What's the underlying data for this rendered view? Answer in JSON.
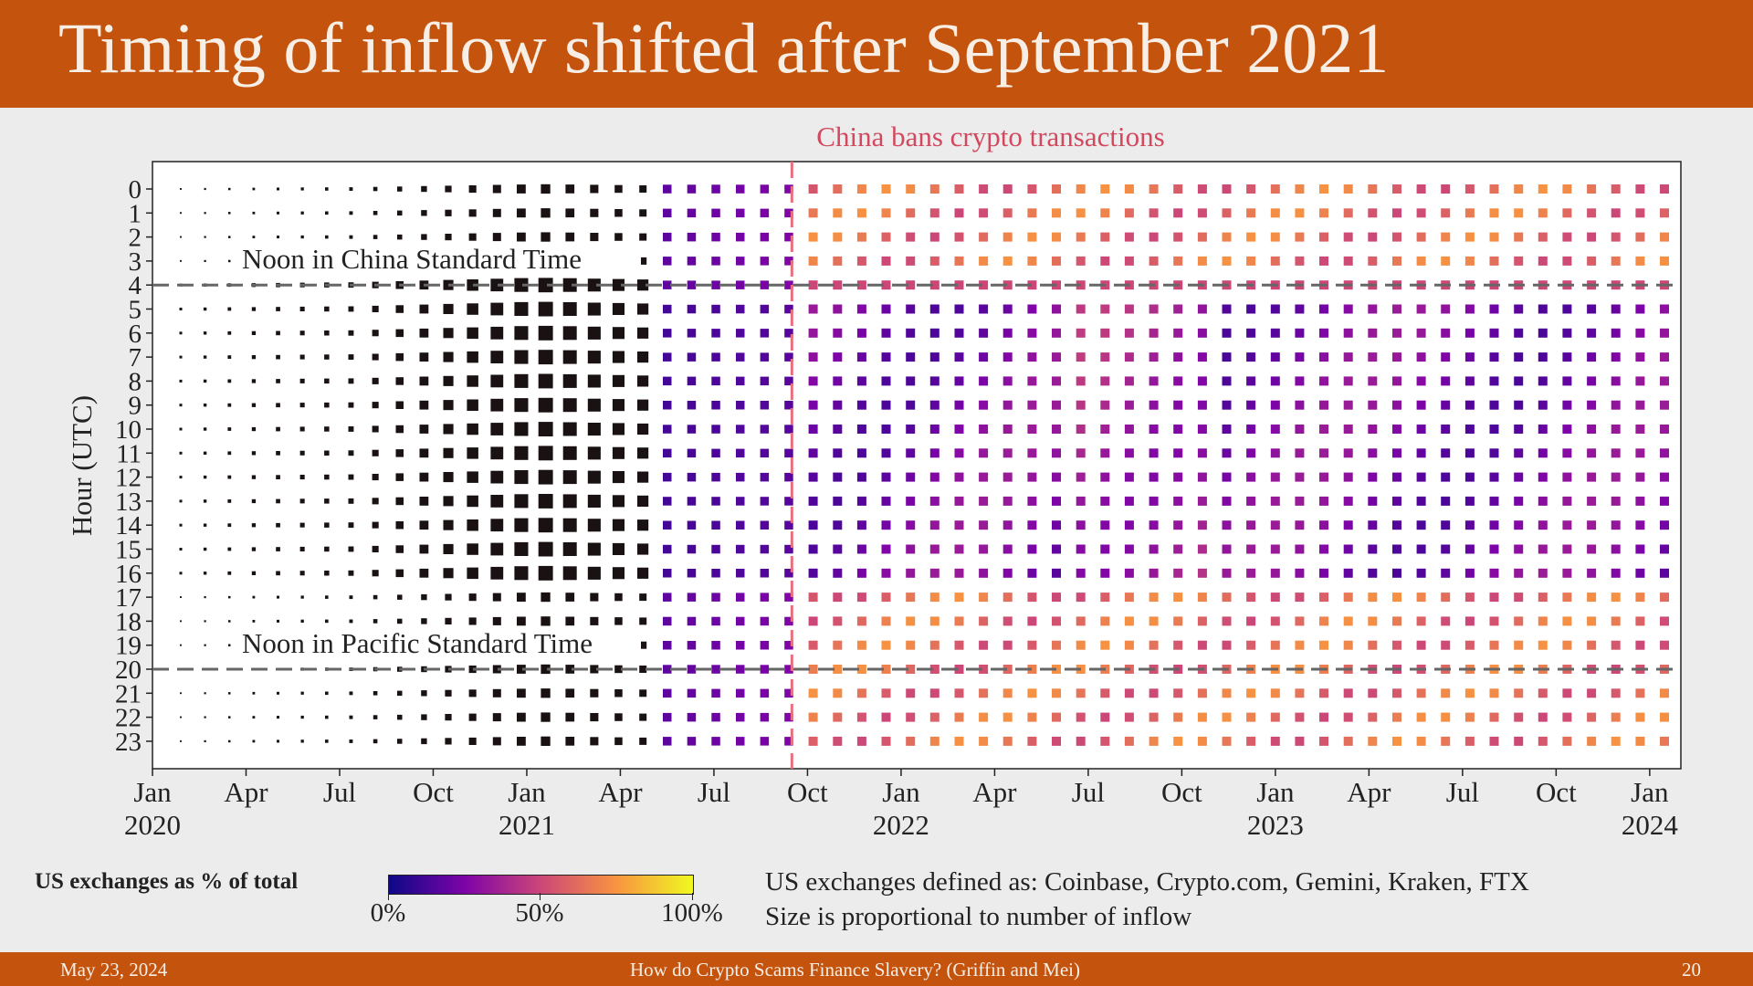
{
  "slide": {
    "title": "Timing of inflow shifted after September 2021",
    "footer_date": "May 23, 2024",
    "footer_title": "How do Crypto Scams Finance Slavery? (Griffin and Mei)",
    "footer_page": "20"
  },
  "legend": {
    "label": "US exchanges as % of total",
    "ticks": [
      "0%",
      "50%",
      "100%"
    ],
    "colormap": [
      "#0d0887",
      "#7e03a8",
      "#cc4778",
      "#f89540",
      "#f0f921"
    ]
  },
  "notes": [
    "US exchanges defined as: Coinbase, Crypto.com, Gemini, Kraken, FTX",
    "Size is proportional to number of inflow"
  ],
  "chart_data": {
    "type": "heatmap",
    "title": "",
    "ylabel": "Hour (UTC)",
    "xlabel": "",
    "x_ticks": [
      "Jan\n2020",
      "Apr",
      "Jul",
      "Oct",
      "Jan\n2021",
      "Apr",
      "Jul",
      "Oct",
      "Jan\n2022",
      "Apr",
      "Jul",
      "Oct",
      "Jan\n2023",
      "Apr",
      "Jul",
      "Oct",
      "Jan\n2024"
    ],
    "x_start": "2020-01",
    "x_end": "2024-02",
    "y_categories": [
      0,
      1,
      2,
      3,
      4,
      5,
      6,
      7,
      8,
      9,
      10,
      11,
      12,
      13,
      14,
      15,
      16,
      17,
      18,
      19,
      20,
      21,
      22,
      23
    ],
    "color_meaning": "US exchanges as % of total",
    "size_meaning": "number of inflow",
    "reference_lines": [
      {
        "orientation": "horizontal",
        "y": 4,
        "label": "Noon in China Standard Time",
        "style": "dashed",
        "color": "#666666"
      },
      {
        "orientation": "horizontal",
        "y": 20,
        "label": "Noon in Pacific Standard Time",
        "style": "dashed",
        "color": "#666666"
      },
      {
        "orientation": "vertical",
        "x": "2021-09",
        "label": "China bans crypto transactions",
        "style": "dashed",
        "color": "#e8707e"
      }
    ],
    "grid": false,
    "legend_position": "bottom-left",
    "value_profile_us_share_pct": {
      "period_2020-01_to_2021-05": 2,
      "period_2021-06_to_2021-09": 25,
      "period_2021-10_onward_hours_0-3_and_16-23": 70,
      "period_2021-10_onward_hours_5-15": 35
    }
  }
}
